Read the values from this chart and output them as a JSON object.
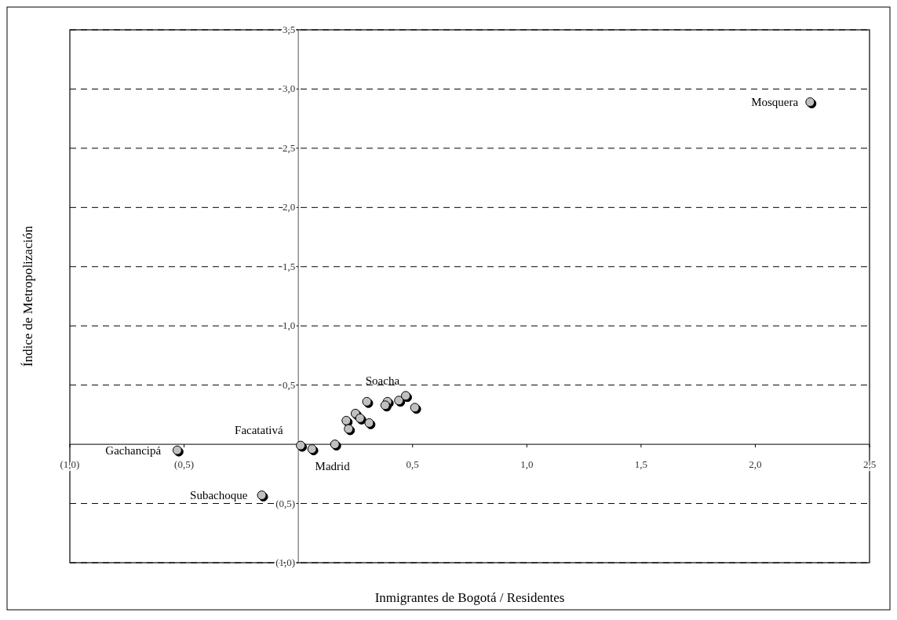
{
  "chart_data": {
    "type": "scatter",
    "xlabel": "Inmigrantes de Bogotá / Residentes",
    "ylabel": "Índice de Metropolización",
    "xlim": [
      -1,
      2.5
    ],
    "ylim": [
      -1,
      3.5
    ],
    "xticks": [
      {
        "value": -1,
        "label": "(1,0)"
      },
      {
        "value": -0.5,
        "label": "(0,5)"
      },
      {
        "value": 0.5,
        "label": "0,5"
      },
      {
        "value": 1,
        "label": "1,0"
      },
      {
        "value": 1.5,
        "label": "1,5"
      },
      {
        "value": 2,
        "label": "2,0"
      },
      {
        "value": 2.5,
        "label": "2,5"
      }
    ],
    "yticks": [
      {
        "value": -1,
        "label": "(1,0)"
      },
      {
        "value": -0.5,
        "label": "(0,5)"
      },
      {
        "value": 0.5,
        "label": "0,5"
      },
      {
        "value": 1,
        "label": "1,0"
      },
      {
        "value": 1.5,
        "label": "1,5"
      },
      {
        "value": 2,
        "label": "2,0"
      },
      {
        "value": 2.5,
        "label": "2,5"
      },
      {
        "value": 3,
        "label": "3,0"
      },
      {
        "value": 3.5,
        "label": "3,5"
      }
    ],
    "grid": "y",
    "marker": "circle",
    "series": [
      {
        "color": "#c0c0c0",
        "x": [
          -0.53,
          -0.16,
          0.01,
          0.06,
          0.16,
          0.21,
          0.22,
          0.25,
          0.27,
          0.31,
          0.3,
          0.39,
          0.38,
          0.44,
          0.47,
          0.51,
          2.24
        ],
        "values": [
          -0.05,
          -0.43,
          -0.01,
          -0.04,
          0.0,
          0.2,
          0.13,
          0.26,
          0.22,
          0.18,
          0.36,
          0.36,
          0.33,
          0.37,
          0.41,
          0.31,
          2.89
        ]
      }
    ],
    "annotations": [
      {
        "text": "Mosquera",
        "x": 2.24,
        "y": 2.89
      },
      {
        "text": "Soacha",
        "x": 0.47,
        "y": 0.41
      },
      {
        "text": "Facatativá",
        "x": 0.01,
        "y": -0.01
      },
      {
        "text": "Madrid",
        "x": 0.06,
        "y": -0.04
      },
      {
        "text": "Gachancipá",
        "x": -0.53,
        "y": -0.05
      },
      {
        "text": "Subachoque",
        "x": -0.16,
        "y": -0.43
      }
    ]
  }
}
